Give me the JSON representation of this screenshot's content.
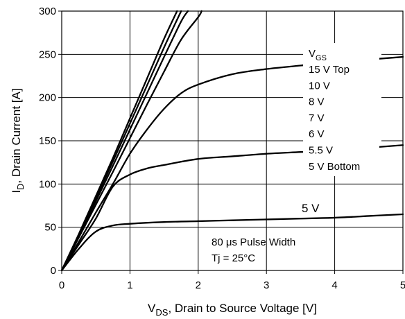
{
  "chart_data": {
    "type": "line",
    "xlabel": {
      "main": "V",
      "sub": "DS",
      "rest": ", Drain to Source Voltage [V]"
    },
    "ylabel": {
      "main": "I",
      "sub": "D",
      "rest": ", Drain Current [A]"
    },
    "xlim": [
      0,
      5
    ],
    "ylim": [
      0,
      300
    ],
    "xticks": [
      0,
      1,
      2,
      3,
      4,
      5
    ],
    "yticks": [
      0,
      50,
      100,
      150,
      200,
      250,
      300
    ],
    "grid": true,
    "legend": {
      "title": {
        "main": "V",
        "sub": "GS"
      },
      "entries": [
        "15 V Top",
        "10 V",
        "8 V",
        "7 V",
        "6 V",
        "5.5 V",
        "5 V Bottom"
      ]
    },
    "series": [
      {
        "x": [
          0,
          0.25,
          0.5,
          0.75,
          1.0,
          1.25,
          1.5,
          1.69
        ],
        "y": [
          0,
          42,
          86,
          130,
          176,
          222,
          268,
          300
        ]
      },
      {
        "x": [
          0,
          0.25,
          0.5,
          0.75,
          1.0,
          1.25,
          1.5,
          1.75
        ],
        "y": [
          0,
          41,
          83,
          126,
          170,
          214,
          258,
          300
        ]
      },
      {
        "x": [
          0,
          0.25,
          0.5,
          0.75,
          1.0,
          1.25,
          1.5,
          1.75,
          1.85
        ],
        "y": [
          0,
          40,
          80,
          121,
          163,
          205,
          247,
          288,
          300
        ]
      },
      {
        "x": [
          0,
          0.25,
          0.5,
          0.75,
          1.0,
          1.25,
          1.5,
          1.75,
          2.0,
          2.05
        ],
        "y": [
          0,
          38,
          76,
          114,
          153,
          192,
          230,
          267,
          293,
          300
        ]
      },
      {
        "x": [
          0,
          0.25,
          0.5,
          0.75,
          1.0,
          1.25,
          1.5,
          1.75,
          2.0,
          2.5,
          3.0,
          3.5,
          4.0,
          4.5,
          5.0
        ],
        "y": [
          0,
          33,
          67,
          100,
          135,
          163,
          187,
          205,
          215,
          227,
          233,
          237,
          241,
          244,
          247
        ]
      },
      {
        "x": [
          0,
          0.25,
          0.5,
          0.75,
          1.0,
          1.25,
          1.5,
          2.0,
          2.5,
          3.0,
          3.5,
          4.0,
          4.5,
          5.0
        ],
        "y": [
          0,
          30,
          60,
          97,
          111,
          118,
          122,
          129,
          132,
          135,
          137,
          139,
          142,
          145
        ]
      },
      {
        "x": [
          0,
          0.25,
          0.5,
          0.75,
          1.0,
          1.5,
          2.0,
          2.5,
          3.0,
          3.5,
          4.0,
          4.5,
          5.0
        ],
        "y": [
          0,
          25,
          45,
          52,
          54,
          56,
          57,
          58,
          59,
          60,
          61,
          63,
          65
        ]
      }
    ],
    "annotations": {
      "curve_label_5v": "5 V",
      "pulse": "80 μs Pulse Width",
      "tj": "Tj = 25°C"
    }
  }
}
